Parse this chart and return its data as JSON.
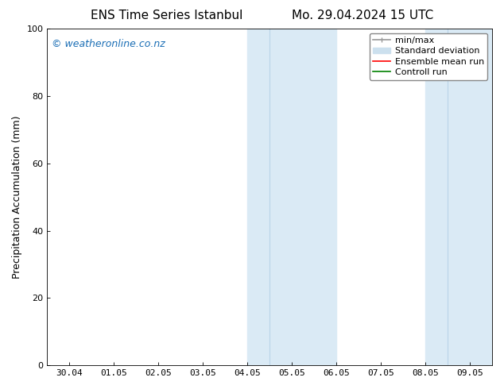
{
  "title_left": "ENS Time Series Istanbul",
  "title_right": "Mo. 29.04.2024 15 UTC",
  "ylabel": "Precipitation Accumulation (mm)",
  "ylim": [
    0,
    100
  ],
  "yticks": [
    0,
    20,
    40,
    60,
    80,
    100
  ],
  "x_tick_labels": [
    "30.04",
    "01.05",
    "02.05",
    "03.05",
    "04.05",
    "05.05",
    "06.05",
    "07.05",
    "08.05",
    "09.05"
  ],
  "x_tick_positions": [
    0,
    1,
    2,
    3,
    4,
    5,
    6,
    7,
    8,
    9
  ],
  "xmin": -0.5,
  "xmax": 9.5,
  "shaded_bands": [
    {
      "x_start": 4.0,
      "x_end": 4.5,
      "color": "#daeaf5"
    },
    {
      "x_start": 4.5,
      "x_end": 6.0,
      "color": "#daeaf5"
    },
    {
      "x_start": 8.0,
      "x_end": 8.5,
      "color": "#daeaf5"
    },
    {
      "x_start": 8.5,
      "x_end": 9.5,
      "color": "#daeaf5"
    }
  ],
  "band_dividers": [
    4.5,
    8.5
  ],
  "shaded_regions": [
    {
      "x_start": 4.0,
      "x_end": 6.0
    },
    {
      "x_start": 8.0,
      "x_end": 9.5
    }
  ],
  "band_inner_dividers": [
    4.5,
    8.5
  ],
  "background_color": "#ffffff",
  "plot_bg_color": "#ffffff",
  "watermark_text": "© weatheronline.co.nz",
  "watermark_color": "#1a6eb5",
  "legend_items": [
    {
      "label": "min/max",
      "color": "#999999",
      "lw": 1.2
    },
    {
      "label": "Standard deviation",
      "color": "#cce0ee",
      "lw": 8
    },
    {
      "label": "Ensemble mean run",
      "color": "#ff0000",
      "lw": 1.2
    },
    {
      "label": "Controll run",
      "color": "#008000",
      "lw": 1.2
    }
  ],
  "title_fontsize": 11,
  "tick_label_fontsize": 8,
  "ylabel_fontsize": 9,
  "legend_fontsize": 8,
  "watermark_fontsize": 9
}
